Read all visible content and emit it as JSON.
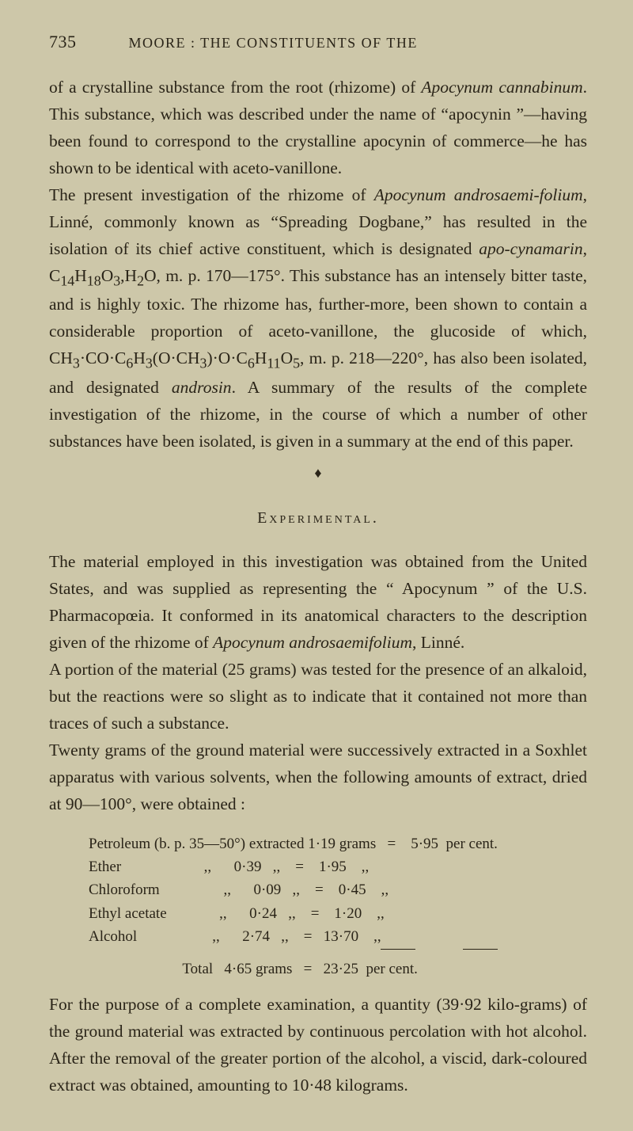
{
  "page_number": "735",
  "running_head": "MOORE : THE CONSTITUENTS OF THE",
  "para1_html": "of a crystalline substance from the root (rhizome) of <span class='italic'>Apocynum cannabinum</span>. This substance, which was described under the name of “apocynin ”—having been found to correspond to the crystalline apocynin of commerce—he has shown to be identical with aceto-vanillone.",
  "para2_html": "The present investigation of the rhizome of <span class='italic'>Apocynum androsaemi-folium</span>, Linné, commonly known as “Spreading Dogbane,” has resulted in the isolation of its chief active constituent, which is designated <span class='italic'>apo-cynamarin</span>, C<sub>14</sub>H<sub>18</sub>O<sub>3</sub>,H<sub>2</sub>O, m. p. 170—175°. This substance has an intensely bitter taste, and is highly toxic. The rhizome has, further-more, been shown to contain a considerable proportion of aceto-vanillone, the glucoside of which, CH<sub>3</sub>·CO·C<sub>6</sub>H<sub>3</sub>(O·CH<sub>3</sub>)·O·C<sub>6</sub>H<sub>11</sub>O<sub>5</sub>, m. p. 218—220°, has also been isolated, and designated <span class='italic'>androsin</span>. A summary of the results of the complete investigation of the rhizome, in the course of which a number of other substances have been isolated, is given in a summary at the end of this paper.",
  "bullet": "♦",
  "section_head": "Experimental.",
  "para3_html": "The material employed in this investigation was obtained from the United States, and was supplied as representing the “ Apocynum ” of the U.S. Pharmacopœia. It conformed in its anatomical characters to the description given of the rhizome of <span class='italic'>Apocynum androsaemifolium</span>, Linné.",
  "para4_html": "A portion of the material (25 grams) was tested for the presence of an alkaloid, but the reactions were so slight as to indicate that it contained not more than traces of such a substance.",
  "para5_html": "Twenty grams of the ground material were successively extracted in a Soxhlet apparatus with various solvents, when the following amounts of extract, dried at 90—100°, were obtained :",
  "table": {
    "rows": [
      "Petroleum (b. p. 35—50°) extracted 1·19 grams   =    5·95  per cent.",
      "Ether                      ,,      0·39   ,,    =    1·95    ,,",
      "Chloroform                 ,,      0·09   ,,    =    0·45    ,,",
      "Ethyl acetate              ,,      0·24   ,,    =    1·20    ,,",
      "Alcohol                    ,,      2·74   ,,    =   13·70    ,,"
    ],
    "total": "                         Total   4·65 grams   =   23·25  per cent."
  },
  "para6_html": "For the purpose of a complete examination, a quantity (39·92 kilo-grams) of the ground material was extracted by continuous percolation with hot alcohol. After the removal of the greater portion of the alcohol, a viscid, dark-coloured extract was obtained, amounting to 10·48 kilograms."
}
